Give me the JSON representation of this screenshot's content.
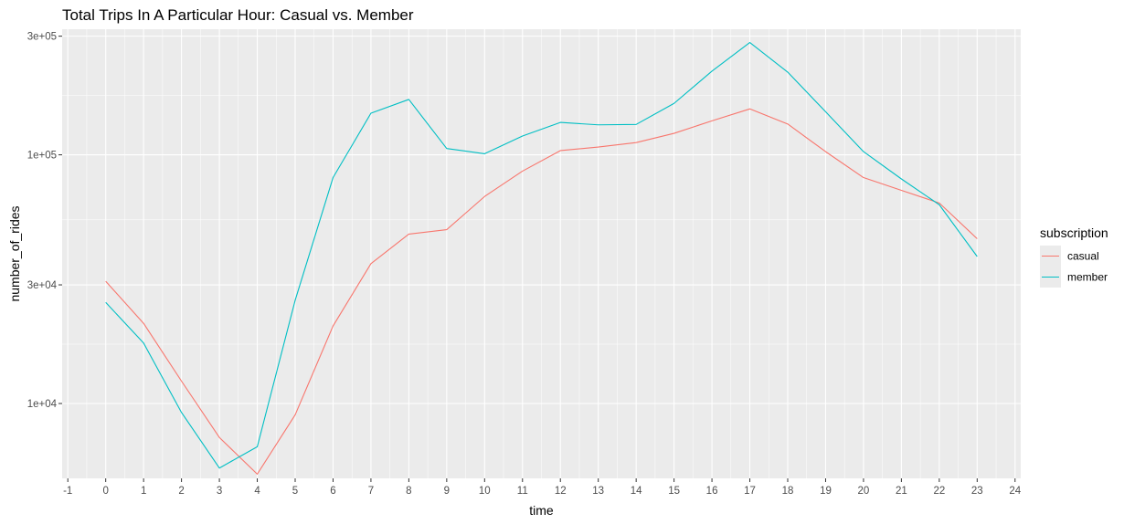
{
  "chart_data": {
    "type": "line",
    "title": "Total Trips In A Particular Hour: Casual vs. Member",
    "xlabel": "time",
    "ylabel": "number_of_rides",
    "y_scale": "log10",
    "xlim": [
      -1.15,
      24.15
    ],
    "ylim": [
      5000,
      320000
    ],
    "x_ticks": [
      -1,
      0,
      1,
      2,
      3,
      4,
      5,
      6,
      7,
      8,
      9,
      10,
      11,
      12,
      13,
      14,
      15,
      16,
      17,
      18,
      19,
      20,
      21,
      22,
      23,
      24
    ],
    "y_ticks": [
      10000,
      30000,
      100000,
      300000
    ],
    "y_tick_labels": [
      "1e+04",
      "3e+04",
      "1e+05",
      "3e+05"
    ],
    "x": [
      0,
      1,
      2,
      3,
      4,
      5,
      6,
      7,
      8,
      9,
      10,
      11,
      12,
      13,
      14,
      15,
      16,
      17,
      18,
      19,
      20,
      21,
      22,
      23
    ],
    "series": [
      {
        "name": "casual",
        "color": "#F8766D",
        "values": [
          31000,
          21000,
          12300,
          7300,
          5200,
          9000,
          20500,
          36500,
          48000,
          50000,
          68000,
          86000,
          104000,
          107500,
          112000,
          122000,
          137000,
          153000,
          133000,
          103000,
          81000,
          72000,
          64000,
          46000
        ]
      },
      {
        "name": "member",
        "color": "#00BFC4",
        "values": [
          25500,
          17500,
          9200,
          5500,
          6700,
          26000,
          81000,
          147000,
          167000,
          106000,
          101000,
          119000,
          135000,
          132000,
          132500,
          161000,
          217000,
          283000,
          215000,
          149000,
          103000,
          80000,
          63000,
          39000
        ]
      }
    ],
    "legend": {
      "title": "subscription",
      "position": "right",
      "items": [
        "casual",
        "member"
      ]
    },
    "grid": true,
    "panel_background": "#EBEBEB",
    "grid_color": "#FFFFFF"
  }
}
